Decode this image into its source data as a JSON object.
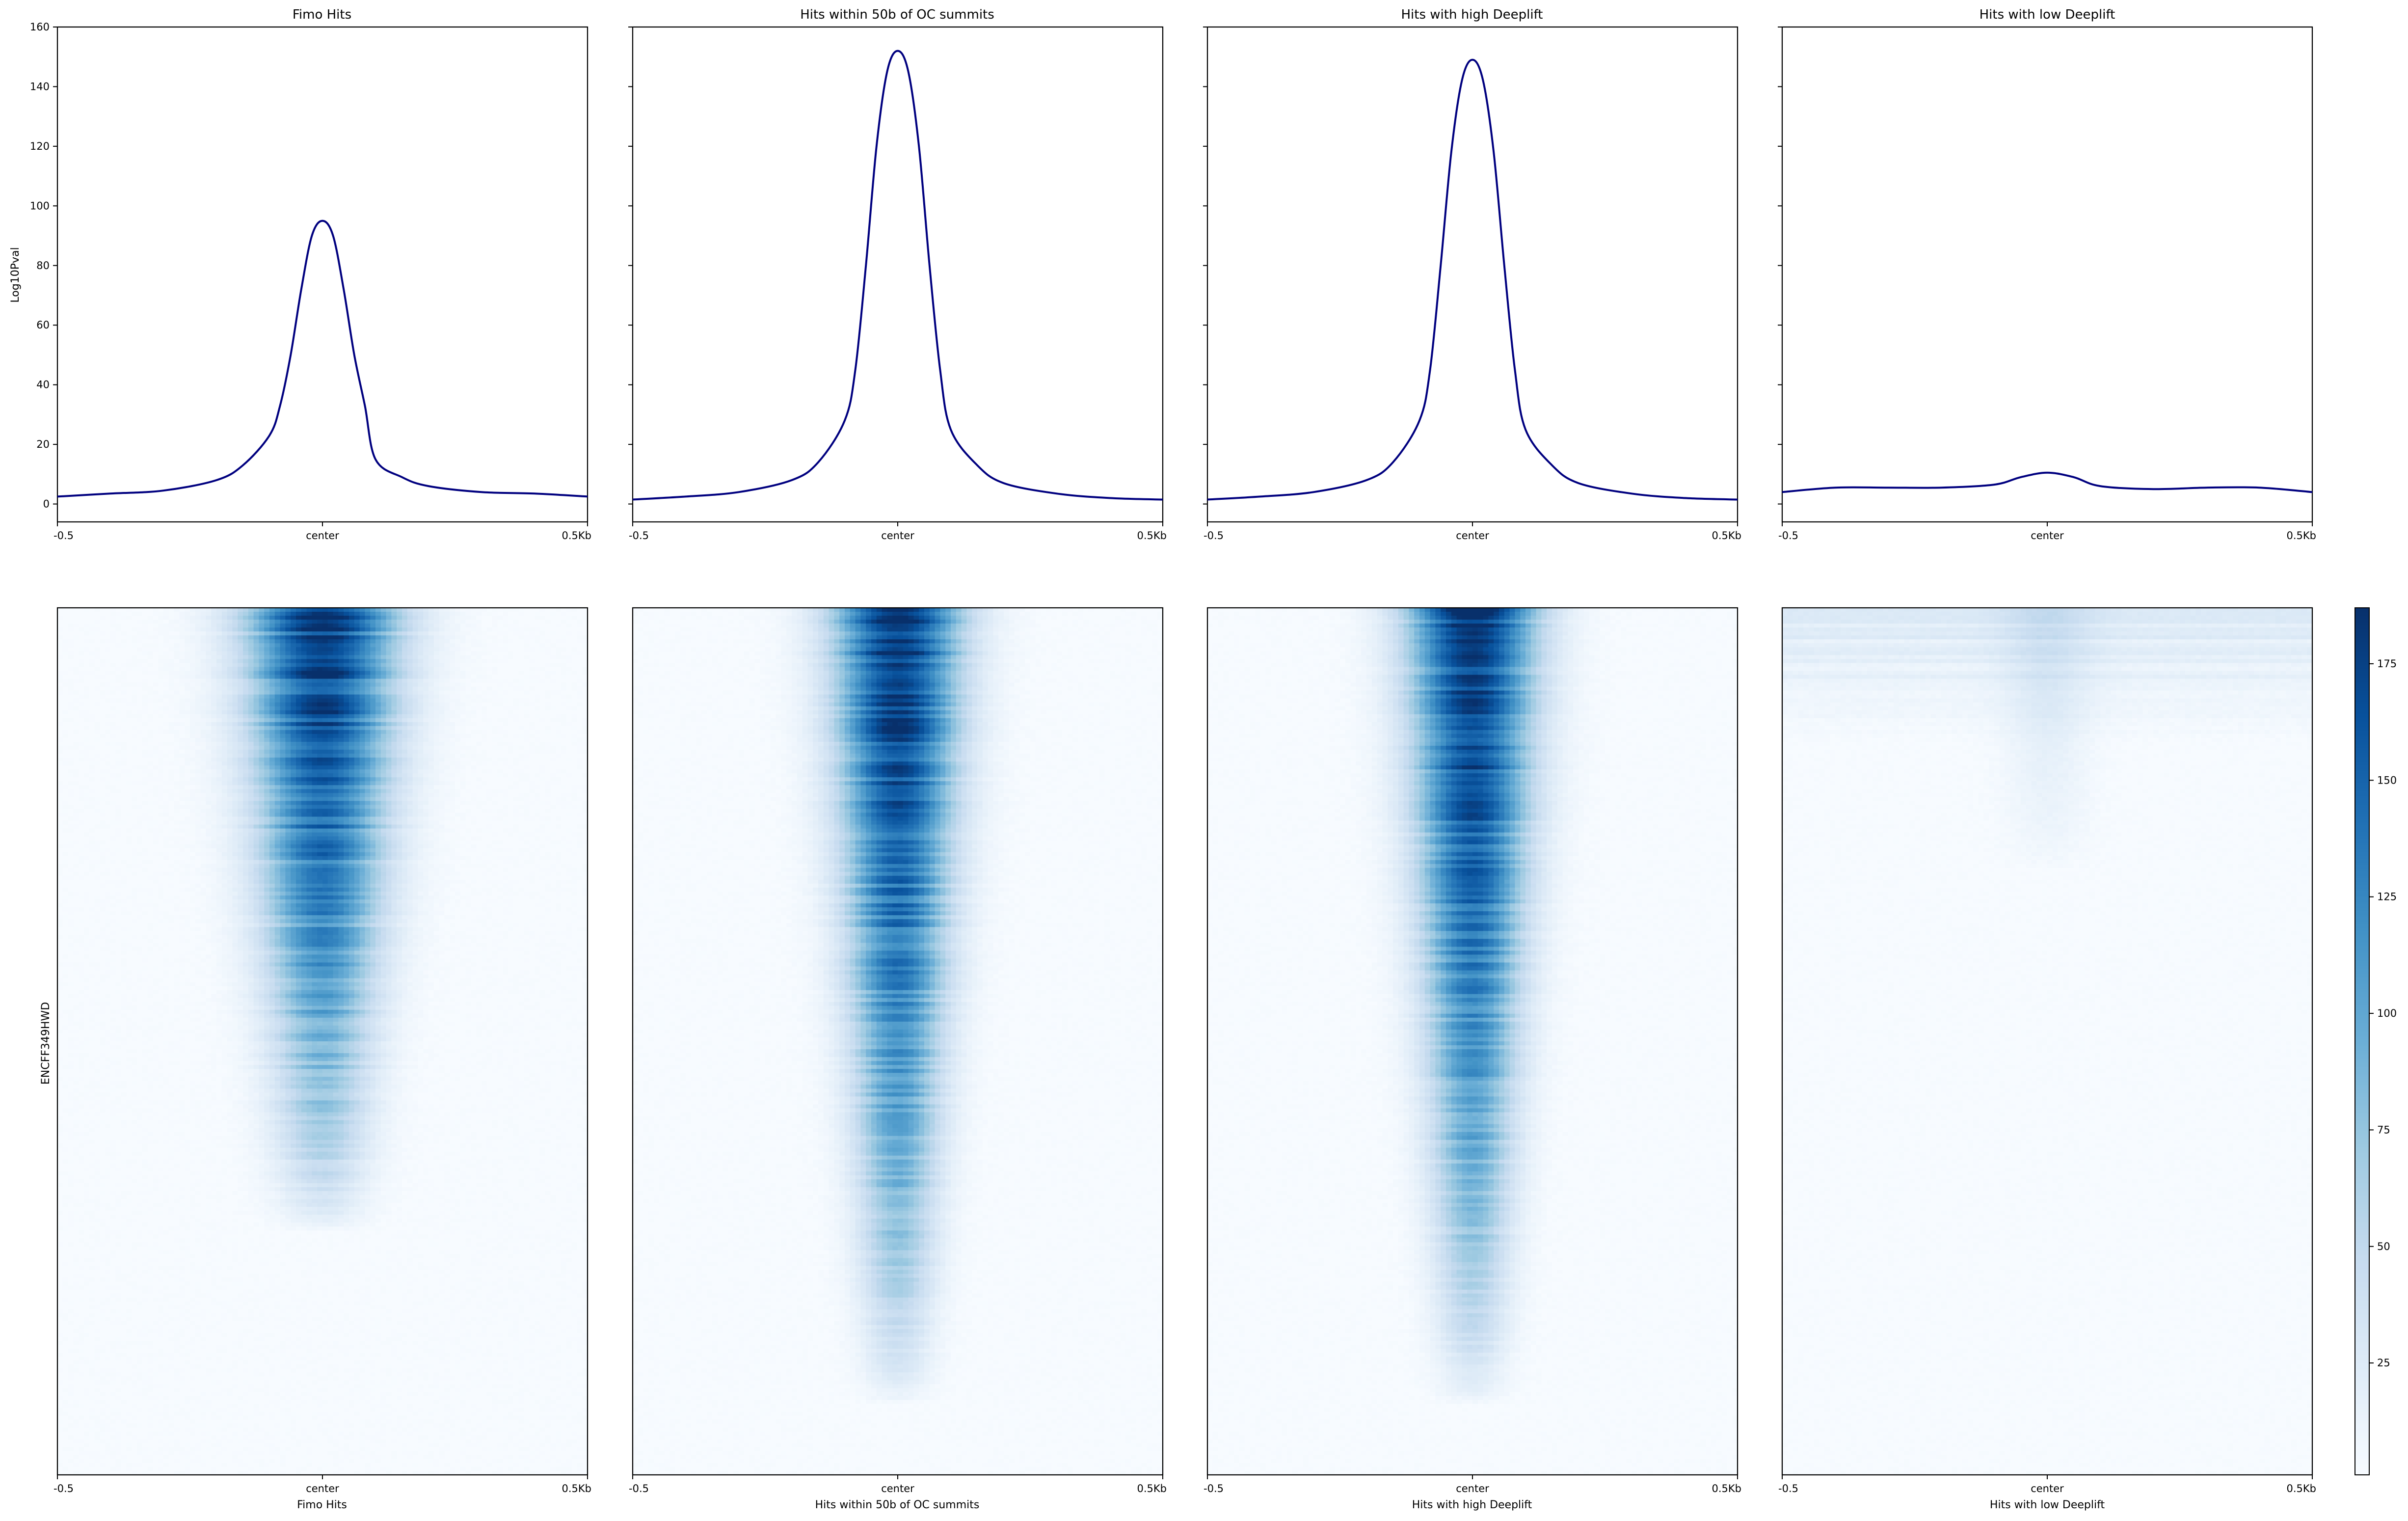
{
  "chart_data": {
    "type": "line",
    "profile": {
      "ylabel": "Log10Pval",
      "ylim": [
        -6,
        160
      ],
      "yticks": [
        0,
        20,
        40,
        60,
        80,
        100,
        120,
        140,
        160
      ],
      "x_range_kb": [
        -0.5,
        0.5
      ],
      "x_tick_labels": [
        "-0.5",
        "center",
        "0.5Kb"
      ],
      "line_color": "#00007f"
    },
    "heatmap": {
      "ylabel": "ENCFF349HWD",
      "colormap": "Blues",
      "colorbar_range": [
        1,
        187
      ],
      "colorbar_ticks": [
        25,
        50,
        75,
        100,
        125,
        150,
        175
      ],
      "x_tick_labels": [
        "-0.5",
        "center",
        "0.5Kb"
      ]
    },
    "panels": [
      {
        "title": "Fimo Hits",
        "xlabel": "Fimo Hits",
        "x": [
          -0.5,
          -0.4,
          -0.3,
          -0.2,
          -0.15,
          -0.1,
          -0.08,
          -0.06,
          -0.04,
          -0.02,
          0,
          0.02,
          0.04,
          0.06,
          0.08,
          0.1,
          0.15,
          0.2,
          0.3,
          0.4,
          0.5
        ],
        "y": [
          2.5,
          3.5,
          4.5,
          8,
          13,
          23,
          33,
          50,
          72,
          90,
          95,
          90,
          72,
          50,
          33,
          15,
          9,
          6,
          4,
          3.5,
          2.5
        ],
        "heatmap_profile": {
          "peak": 185,
          "top_width": 0.1,
          "bottom_width": 0.04,
          "fade_row": 0.72,
          "noise": 0.35
        }
      },
      {
        "title": "Hits within 50b of OC summits",
        "xlabel": "Hits within 50b of OC summits",
        "x": [
          -0.5,
          -0.4,
          -0.3,
          -0.2,
          -0.15,
          -0.1,
          -0.08,
          -0.06,
          -0.04,
          -0.02,
          0,
          0.02,
          0.04,
          0.06,
          0.08,
          0.1,
          0.15,
          0.2,
          0.3,
          0.4,
          0.5
        ],
        "y": [
          1.5,
          2.5,
          4,
          8,
          14,
          28,
          45,
          80,
          120,
          145,
          152,
          145,
          120,
          80,
          45,
          25,
          13,
          7,
          3.5,
          2,
          1.5
        ],
        "heatmap_profile": {
          "peak": 187,
          "top_width": 0.085,
          "bottom_width": 0.04,
          "fade_row": 0.92,
          "noise": 0.3
        }
      },
      {
        "title": "Hits with high Deeplift",
        "xlabel": "Hits with high Deeplift",
        "x": [
          -0.5,
          -0.4,
          -0.3,
          -0.2,
          -0.15,
          -0.1,
          -0.08,
          -0.06,
          -0.04,
          -0.02,
          0,
          0.02,
          0.04,
          0.06,
          0.08,
          0.1,
          0.15,
          0.2,
          0.3,
          0.4,
          0.5
        ],
        "y": [
          1.5,
          2.5,
          4,
          8,
          14,
          28,
          45,
          80,
          118,
          142,
          149,
          142,
          118,
          80,
          45,
          25,
          13,
          7,
          3.5,
          2,
          1.5
        ],
        "heatmap_profile": {
          "peak": 187,
          "top_width": 0.085,
          "bottom_width": 0.04,
          "fade_row": 0.92,
          "noise": 0.3
        }
      },
      {
        "title": "Hits with low Deeplift",
        "xlabel": "Hits with low Deeplift",
        "x": [
          -0.5,
          -0.4,
          -0.3,
          -0.2,
          -0.1,
          -0.05,
          0,
          0.05,
          0.1,
          0.2,
          0.3,
          0.4,
          0.5
        ],
        "y": [
          4,
          5.5,
          5.5,
          5.5,
          6.5,
          9,
          10.5,
          9,
          6,
          5,
          5.5,
          5.5,
          4
        ],
        "heatmap_profile": {
          "peak": 55,
          "top_width": 0.06,
          "bottom_width": 0.04,
          "fade_row": 0.3,
          "noise": 0.8
        }
      }
    ]
  }
}
